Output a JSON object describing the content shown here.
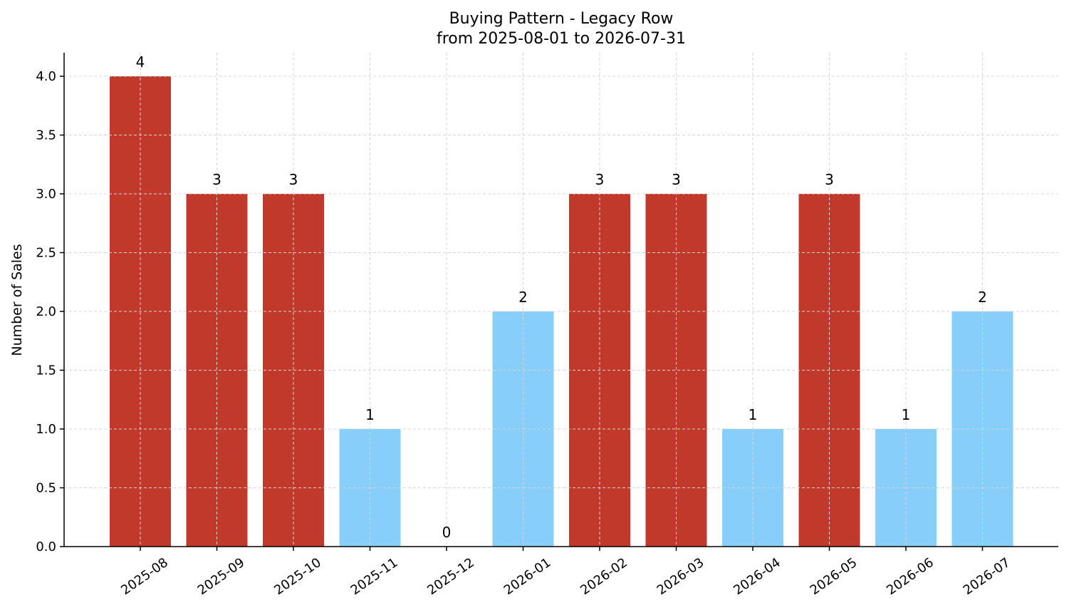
{
  "chart_data": {
    "type": "bar",
    "title": "Buying Pattern - Legacy Row",
    "subtitle": "from 2025-08-01 to 2026-07-31",
    "xlabel": "",
    "ylabel": "Number of Sales",
    "ylim": [
      0,
      4.2
    ],
    "yticks": [
      "0.0",
      "0.5",
      "1.0",
      "1.5",
      "2.0",
      "2.5",
      "3.0",
      "3.5",
      "4.0"
    ],
    "categories": [
      "2025-08",
      "2025-09",
      "2025-10",
      "2025-11",
      "2025-12",
      "2026-01",
      "2026-02",
      "2026-03",
      "2026-04",
      "2026-05",
      "2026-06",
      "2026-07"
    ],
    "values": [
      4,
      3,
      3,
      1,
      0,
      2,
      3,
      3,
      1,
      3,
      1,
      2
    ],
    "data_labels": [
      "4",
      "3",
      "3",
      "1",
      "0",
      "2",
      "3",
      "3",
      "1",
      "3",
      "1",
      "2"
    ],
    "bar_colors": [
      "#c0392b",
      "#c0392b",
      "#c0392b",
      "#87cefa",
      "#87cefa",
      "#87cefa",
      "#c0392b",
      "#c0392b",
      "#87cefa",
      "#c0392b",
      "#87cefa",
      "#87cefa"
    ],
    "grid": true,
    "legend": "none"
  }
}
